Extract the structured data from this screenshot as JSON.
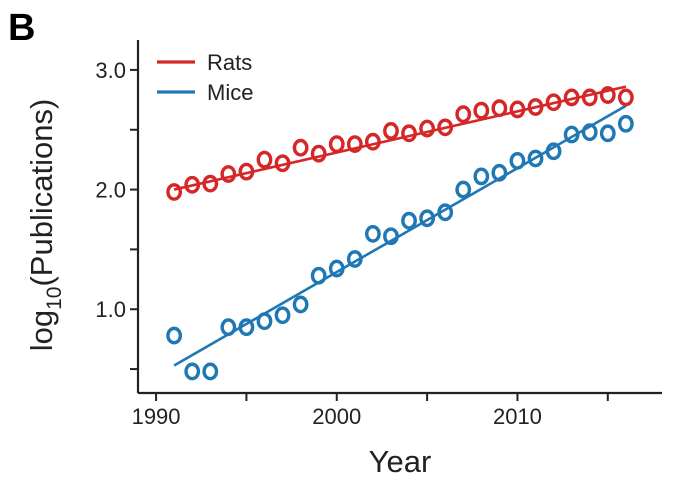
{
  "panel_label": "B",
  "colors": {
    "rats": "#d62728",
    "mice": "#1f77b4"
  },
  "chart_data": {
    "type": "scatter",
    "title": "",
    "xlabel": "Year",
    "ylabel": {
      "prefix": "log",
      "subscript": "10",
      "rest": "(Publications)"
    },
    "xlim": [
      1989,
      2018
    ],
    "ylim": [
      0.3,
      3.25
    ],
    "xticks": [
      1990,
      1995,
      2000,
      2005,
      2010,
      2015
    ],
    "xtick_labels": [
      "1990",
      "",
      "2000",
      "",
      "2010",
      ""
    ],
    "yticks": [
      0.5,
      1.0,
      1.5,
      2.0,
      2.5,
      3.0
    ],
    "ytick_labels": [
      "",
      "1.0",
      "",
      "2.0",
      "",
      "3.0"
    ],
    "grid": false,
    "legend": "top-left",
    "x": [
      1991,
      1992,
      1993,
      1994,
      1995,
      1996,
      1997,
      1998,
      1999,
      2000,
      2001,
      2002,
      2003,
      2004,
      2005,
      2006,
      2007,
      2008,
      2009,
      2010,
      2011,
      2012,
      2013,
      2014,
      2015,
      2016
    ],
    "series": [
      {
        "name": "Rats",
        "color": "#d62728",
        "values": [
          1.98,
          2.04,
          2.05,
          2.13,
          2.15,
          2.25,
          2.22,
          2.35,
          2.3,
          2.38,
          2.38,
          2.4,
          2.49,
          2.47,
          2.51,
          2.52,
          2.63,
          2.66,
          2.68,
          2.67,
          2.69,
          2.73,
          2.77,
          2.77,
          2.79,
          2.77
        ],
        "fit": [
          [
            1991,
            2.0
          ],
          [
            2016,
            2.86
          ]
        ]
      },
      {
        "name": "Mice",
        "color": "#1f77b4",
        "values": [
          0.78,
          0.48,
          0.48,
          0.85,
          0.85,
          0.9,
          0.95,
          1.04,
          1.28,
          1.34,
          1.42,
          1.63,
          1.61,
          1.74,
          1.76,
          1.81,
          2.0,
          2.11,
          2.14,
          2.24,
          2.26,
          2.32,
          2.46,
          2.48,
          2.47,
          2.55
        ],
        "fit": [
          [
            1991,
            0.53
          ],
          [
            2016,
            2.7
          ]
        ]
      }
    ]
  }
}
